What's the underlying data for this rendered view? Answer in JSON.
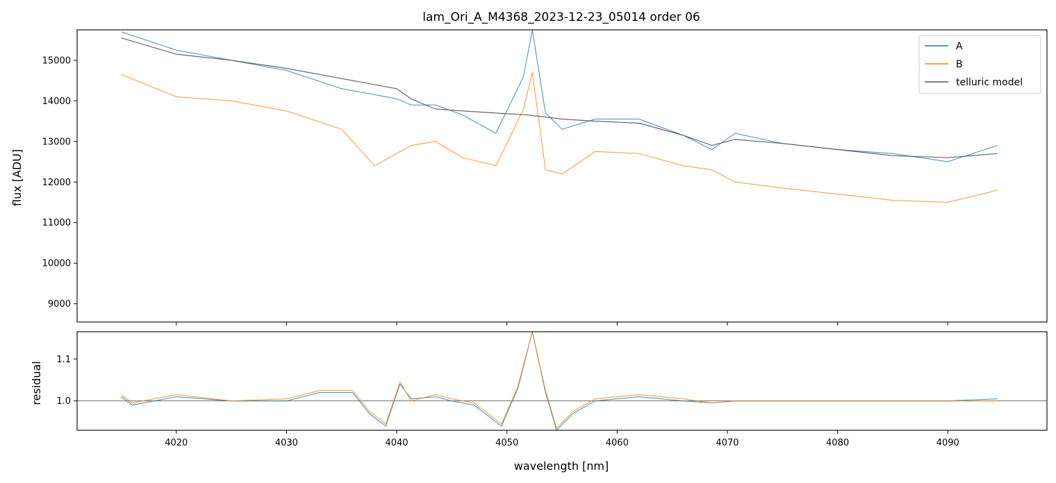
{
  "chart_data": [
    {
      "type": "line",
      "panel": "main",
      "title": "lam_Ori_A_M4368_2023-12-23_05014  order 06",
      "xlabel": "",
      "ylabel": "flux [ADU]",
      "xlim": [
        4011.0,
        4099.0
      ],
      "ylim": [
        8550,
        15750
      ],
      "yticks": [
        9000,
        10000,
        11000,
        12000,
        13000,
        14000,
        15000
      ],
      "xticks": [
        4020,
        4030,
        4040,
        4050,
        4060,
        4070,
        4080,
        4090
      ],
      "legend_position": "top-right",
      "series": [
        {
          "name": "A",
          "color": "#1f77b4",
          "x": [
            4015.0,
            4020,
            4025,
            4030,
            4035,
            4040,
            4041.3,
            4043.5,
            4046,
            4049,
            4051.5,
            4052.3,
            4053.5,
            4055,
            4058,
            4062,
            4066,
            4068.6,
            4070.7,
            4075,
            4080,
            4085,
            4090,
            4094.5
          ],
          "y": [
            15700,
            15250,
            15000,
            14750,
            14300,
            14050,
            13900,
            13900,
            13650,
            13200,
            14600,
            15750,
            13700,
            13300,
            13550,
            13550,
            13150,
            12800,
            13200,
            12950,
            12800,
            12700,
            12500,
            12900
          ]
        },
        {
          "name": "B",
          "color": "#ff7f0e",
          "x": [
            4015.0,
            4020,
            4025,
            4030,
            4035,
            4038,
            4041.3,
            4043.5,
            4046,
            4049,
            4051.5,
            4052.3,
            4053.5,
            4055,
            4058,
            4062,
            4066,
            4068.6,
            4070.7,
            4075,
            4080,
            4085,
            4090,
            4094.5
          ],
          "y": [
            14650,
            14100,
            14000,
            13750,
            13300,
            12400,
            12900,
            13000,
            12600,
            12400,
            13800,
            14700,
            12300,
            12200,
            12750,
            12700,
            12400,
            12300,
            12000,
            11850,
            11700,
            11550,
            11500,
            11800
          ]
        },
        {
          "name": "telluric model",
          "color": "#555555",
          "x": [
            4015.0,
            4020,
            4025,
            4030,
            4035,
            4040,
            4041.3,
            4043.5,
            4046,
            4049,
            4052,
            4055,
            4058,
            4062,
            4066,
            4068.6,
            4070.7,
            4075,
            4080,
            4085,
            4090,
            4094.5
          ],
          "y": [
            15550,
            15150,
            15000,
            14800,
            14550,
            14300,
            14050,
            13800,
            13750,
            13700,
            13650,
            13550,
            13500,
            13450,
            13150,
            12900,
            13050,
            12950,
            12800,
            12650,
            12600,
            12700
          ]
        }
      ]
    },
    {
      "type": "line",
      "panel": "residual",
      "xlabel": "wavelength [nm]",
      "ylabel": "residual",
      "xlim": [
        4011.0,
        4099.0
      ],
      "ylim": [
        0.93,
        1.165
      ],
      "yticks": [
        1.0,
        1.1
      ],
      "ytick_labels": [
        "1.0",
        "1.1"
      ],
      "xticks": [
        4020,
        4030,
        4040,
        4050,
        4060,
        4070,
        4080,
        4090
      ],
      "reference_line": 1.0,
      "series": [
        {
          "name": "A",
          "color": "#1f77b4",
          "x": [
            4015.0,
            4016,
            4020,
            4025,
            4030,
            4033,
            4036,
            4037.5,
            4039,
            4040.3,
            4041.3,
            4043.5,
            4045,
            4047,
            4049.5,
            4051,
            4052.3,
            4053.5,
            4054.5,
            4056,
            4058,
            4062,
            4066,
            4068.6,
            4070.7,
            4080,
            4090,
            4094.5
          ],
          "y": [
            1.01,
            0.99,
            1.01,
            1.0,
            1.0,
            1.02,
            1.02,
            0.97,
            0.94,
            1.04,
            1.005,
            1.01,
            1.0,
            0.99,
            0.94,
            1.03,
            1.165,
            1.02,
            0.93,
            0.97,
            1.0,
            1.01,
            1.0,
            0.995,
            1.0,
            1.0,
            1.0,
            1.005
          ]
        },
        {
          "name": "B",
          "color": "#ff7f0e",
          "x": [
            4015.0,
            4016,
            4020,
            4025,
            4030,
            4033,
            4036,
            4037.5,
            4039,
            4040.3,
            4041.3,
            4043.5,
            4045,
            4047,
            4049.5,
            4051,
            4052.3,
            4053.5,
            4054.5,
            4056,
            4058,
            4062,
            4066,
            4068.6,
            4070.7,
            4080,
            4090,
            4094.5
          ],
          "y": [
            1.015,
            0.995,
            1.015,
            1.0,
            1.005,
            1.025,
            1.025,
            0.975,
            0.945,
            1.045,
            1.0,
            1.015,
            1.005,
            0.995,
            0.945,
            1.035,
            1.165,
            1.025,
            0.935,
            0.975,
            1.005,
            1.015,
            1.005,
            0.995,
            1.0,
            1.0,
            1.0,
            1.0
          ]
        }
      ]
    }
  ]
}
